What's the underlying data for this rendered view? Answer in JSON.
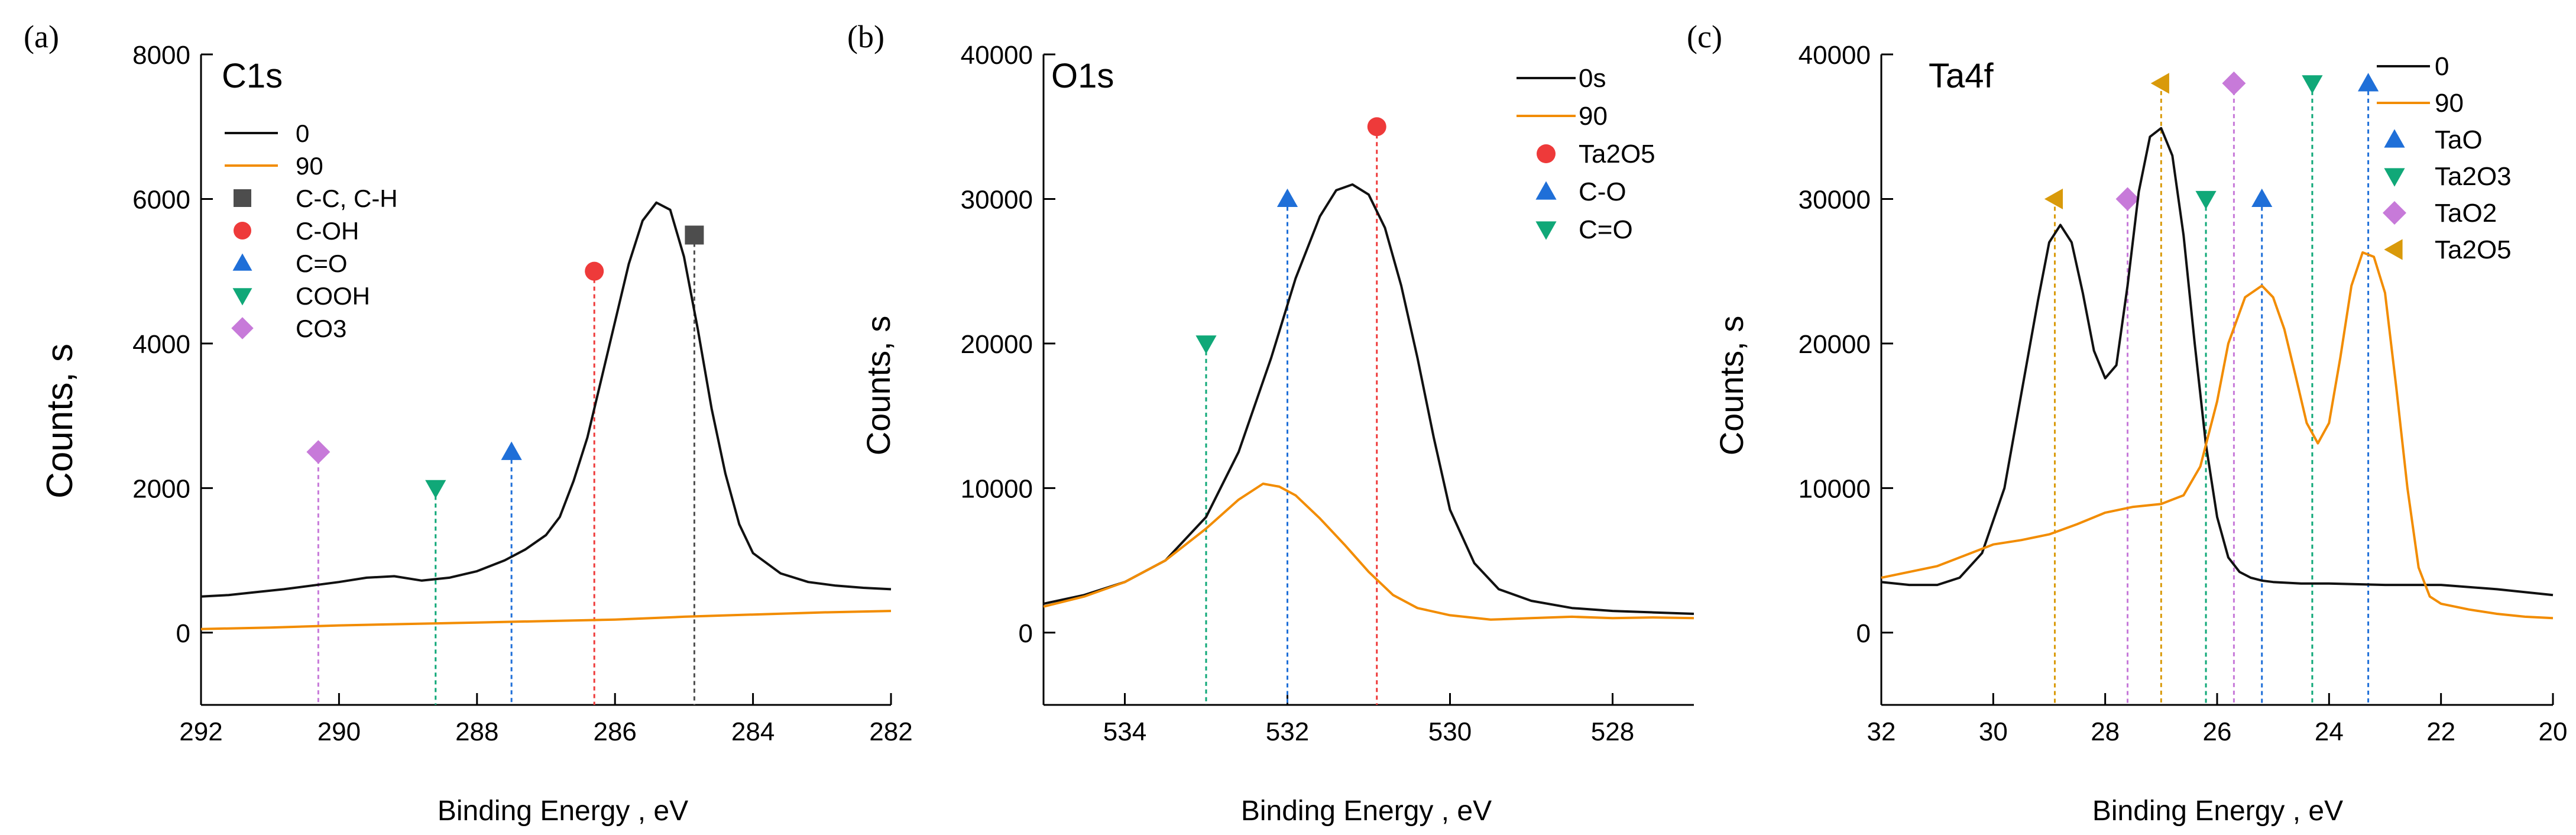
{
  "figure": {
    "background": "#ffffff"
  },
  "chart_data": [
    {
      "panel_letter": "(a)",
      "type": "line",
      "title": "C1s",
      "xlabel": "Binding Energy , eV",
      "ylabel": "Counts, s",
      "xlim": [
        292,
        282
      ],
      "ylim": [
        -1000,
        8000
      ],
      "xticks": [
        292,
        290,
        288,
        286,
        284,
        282
      ],
      "yticks": [
        0,
        2000,
        4000,
        6000,
        8000
      ],
      "legend_position": "top-left",
      "series": [
        {
          "name": "0",
          "color": "#111111",
          "x": [
            292,
            291.6,
            291.2,
            290.8,
            290.4,
            290.0,
            289.6,
            289.2,
            288.8,
            288.4,
            288.0,
            287.6,
            287.3,
            287.0,
            286.8,
            286.6,
            286.4,
            286.2,
            286.0,
            285.8,
            285.6,
            285.4,
            285.2,
            285.0,
            284.8,
            284.6,
            284.4,
            284.2,
            284.0,
            283.6,
            283.2,
            282.8,
            282.4,
            282.0
          ],
          "y": [
            500,
            520,
            560,
            600,
            650,
            700,
            760,
            780,
            720,
            760,
            850,
            1000,
            1150,
            1350,
            1600,
            2100,
            2700,
            3500,
            4300,
            5100,
            5700,
            5950,
            5850,
            5200,
            4200,
            3100,
            2200,
            1500,
            1100,
            820,
            700,
            650,
            620,
            600
          ]
        },
        {
          "name": "90",
          "color": "#f28c00",
          "x": [
            292,
            291,
            290,
            289,
            288,
            287,
            286,
            285,
            284,
            283,
            282
          ],
          "y": [
            50,
            70,
            100,
            120,
            140,
            160,
            180,
            220,
            250,
            280,
            300
          ]
        }
      ],
      "markers": [
        {
          "name": "C-C, C-H",
          "shape": "square",
          "color": "#4d4d4d",
          "x": 284.85,
          "y": 5500
        },
        {
          "name": "C-OH",
          "shape": "circle",
          "color": "#ee3a3a",
          "x": 286.3,
          "y": 5000
        },
        {
          "name": "C=O",
          "shape": "triangle-up",
          "color": "#1f6fd8",
          "x": 287.5,
          "y": 2500
        },
        {
          "name": "COOH",
          "shape": "triangle-down",
          "color": "#10a878",
          "x": 288.6,
          "y": 2000
        },
        {
          "name": "CO3",
          "shape": "diamond",
          "color": "#c77ad9",
          "x": 290.3,
          "y": 2500
        }
      ]
    },
    {
      "panel_letter": "(b)",
      "type": "line",
      "title": "O1s",
      "xlabel": "Binding Energy , eV",
      "ylabel": "Counts, s",
      "xlim": [
        535,
        527
      ],
      "ylim": [
        -5000,
        40000
      ],
      "xticks": [
        534,
        532,
        530,
        528
      ],
      "yticks": [
        0,
        10000,
        20000,
        30000,
        40000
      ],
      "legend_position": "top-right",
      "series": [
        {
          "name": "0s",
          "color": "#111111",
          "x": [
            535,
            534.5,
            534,
            533.5,
            533,
            532.6,
            532.2,
            531.9,
            531.6,
            531.4,
            531.2,
            531.0,
            530.8,
            530.6,
            530.4,
            530.2,
            530.0,
            529.7,
            529.4,
            529.0,
            528.5,
            528,
            527.5,
            527
          ],
          "y": [
            2000,
            2600,
            3500,
            5000,
            8000,
            12500,
            19000,
            24500,
            28800,
            30600,
            31000,
            30300,
            28000,
            24000,
            19000,
            13500,
            8500,
            4800,
            3000,
            2200,
            1700,
            1500,
            1400,
            1300
          ]
        },
        {
          "name": "90",
          "color": "#f28c00",
          "x": [
            535,
            534.5,
            534,
            533.5,
            533,
            532.6,
            532.3,
            532.1,
            531.9,
            531.6,
            531.3,
            531.0,
            530.7,
            530.4,
            530,
            529.5,
            529,
            528.5,
            528,
            527.5,
            527
          ],
          "y": [
            1800,
            2500,
            3500,
            5000,
            7200,
            9200,
            10300,
            10100,
            9500,
            7900,
            6100,
            4200,
            2600,
            1700,
            1200,
            900,
            1000,
            1100,
            1000,
            1050,
            1000
          ]
        }
      ],
      "markers": [
        {
          "name": "Ta2O5",
          "shape": "circle",
          "color": "#ee3a3a",
          "x": 530.9,
          "y": 35000
        },
        {
          "name": "C-O",
          "shape": "triangle-up",
          "color": "#1f6fd8",
          "x": 532.0,
          "y": 30000
        },
        {
          "name": "C=O",
          "shape": "triangle-down",
          "color": "#10a878",
          "x": 533.0,
          "y": 20000
        }
      ]
    },
    {
      "panel_letter": "(c)",
      "type": "line",
      "title": "Ta4f",
      "xlabel": "Binding Energy , eV",
      "ylabel": "Counts, s",
      "xlim": [
        32,
        20
      ],
      "ylim": [
        -5000,
        40000
      ],
      "xticks": [
        32,
        30,
        28,
        26,
        24,
        22,
        20
      ],
      "yticks": [
        0,
        10000,
        20000,
        30000,
        40000
      ],
      "legend_position": "top-right",
      "series": [
        {
          "name": "0",
          "color": "#111111",
          "x": [
            32,
            31.5,
            31,
            30.6,
            30.2,
            29.8,
            29.5,
            29.2,
            29.0,
            28.8,
            28.6,
            28.4,
            28.2,
            28.0,
            27.8,
            27.6,
            27.4,
            27.2,
            27.0,
            26.8,
            26.6,
            26.4,
            26.2,
            26.0,
            25.8,
            25.6,
            25.4,
            25.2,
            25.0,
            24.5,
            24,
            23,
            22,
            21,
            20
          ],
          "y": [
            3500,
            3300,
            3300,
            3800,
            5500,
            10000,
            16500,
            23000,
            27000,
            28200,
            27000,
            23500,
            19500,
            17600,
            18500,
            24000,
            30500,
            34300,
            34900,
            33000,
            27500,
            20000,
            13000,
            8000,
            5200,
            4200,
            3800,
            3600,
            3500,
            3400,
            3400,
            3300,
            3300,
            3000,
            2600
          ]
        },
        {
          "name": "90",
          "color": "#f28c00",
          "x": [
            32,
            31,
            30,
            29.5,
            29,
            28.5,
            28,
            27.5,
            27,
            26.6,
            26.3,
            26.0,
            25.8,
            25.5,
            25.2,
            25.0,
            24.8,
            24.6,
            24.4,
            24.2,
            24.0,
            23.8,
            23.6,
            23.4,
            23.2,
            23.0,
            22.8,
            22.6,
            22.4,
            22.2,
            22.0,
            21.5,
            21,
            20.5,
            20
          ],
          "y": [
            3800,
            4600,
            6100,
            6400,
            6800,
            7500,
            8300,
            8700,
            8900,
            9500,
            11500,
            16000,
            20000,
            23200,
            24000,
            23200,
            21000,
            17800,
            14500,
            13100,
            14500,
            19000,
            24000,
            26300,
            26000,
            23500,
            17000,
            10000,
            4500,
            2500,
            2000,
            1600,
            1300,
            1100,
            1000
          ]
        }
      ],
      "markers": [
        {
          "name": "TaO",
          "shape": "triangle-up",
          "color": "#1f6fd8",
          "x": 25.2,
          "y": 30000
        },
        {
          "name": "TaO",
          "shape": "triangle-up",
          "color": "#1f6fd8",
          "x": 23.3,
          "y": 38000,
          "legend": false
        },
        {
          "name": "Ta2O3",
          "shape": "triangle-down",
          "color": "#10a878",
          "x": 26.2,
          "y": 30000
        },
        {
          "name": "Ta2O3",
          "shape": "triangle-down",
          "color": "#10a878",
          "x": 24.3,
          "y": 38000,
          "legend": false
        },
        {
          "name": "TaO2",
          "shape": "diamond",
          "color": "#c77ad9",
          "x": 27.6,
          "y": 30000
        },
        {
          "name": "TaO2",
          "shape": "diamond",
          "color": "#c77ad9",
          "x": 25.7,
          "y": 38000,
          "legend": false
        },
        {
          "name": "Ta2O5",
          "shape": "triangle-left",
          "color": "#d99a0a",
          "x": 28.9,
          "y": 30000
        },
        {
          "name": "Ta2O5",
          "shape": "triangle-left",
          "color": "#d99a0a",
          "x": 27.0,
          "y": 38000,
          "legend": false
        }
      ]
    }
  ]
}
